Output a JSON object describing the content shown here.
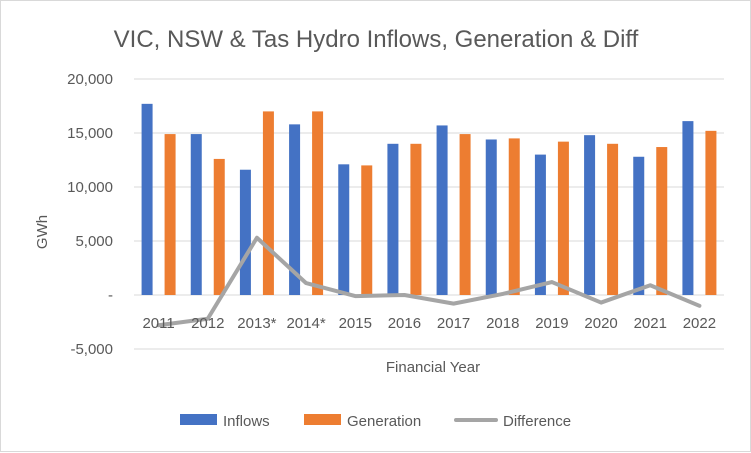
{
  "chart_data": {
    "type": "bar",
    "title": "VIC, NSW & Tas Hydro Inflows, Generation & Diff",
    "xlabel": "Financial Year",
    "ylabel": "GWh",
    "ylim": [
      -5000,
      20000
    ],
    "yticks": [
      20000,
      15000,
      10000,
      5000,
      0,
      -5000
    ],
    "ytick_labels": [
      "20,000",
      "15,000",
      "10,000",
      "5,000",
      "-",
      "-5,000"
    ],
    "grid": true,
    "legend_position": "bottom",
    "categories": [
      "2011",
      "2012",
      "2013*",
      "2014*",
      "2015",
      "2016",
      "2017",
      "2018",
      "2019",
      "2020",
      "2021",
      "2022"
    ],
    "series": [
      {
        "name": "Inflows",
        "type": "bar",
        "color": "#4472c4",
        "values": [
          17700,
          14900,
          11600,
          15800,
          12100,
          14000,
          15700,
          14400,
          13000,
          14800,
          12800,
          16100
        ]
      },
      {
        "name": "Generation",
        "type": "bar",
        "color": "#ed7d31",
        "values": [
          14900,
          12600,
          17000,
          17000,
          12000,
          14000,
          14900,
          14500,
          14200,
          14000,
          13700,
          15200
        ]
      },
      {
        "name": "Difference",
        "type": "line",
        "color": "#a5a5a5",
        "values": [
          -2800,
          -2200,
          5300,
          1100,
          -100,
          0,
          -800,
          100,
          1200,
          -700,
          900,
          -1000
        ]
      }
    ]
  }
}
